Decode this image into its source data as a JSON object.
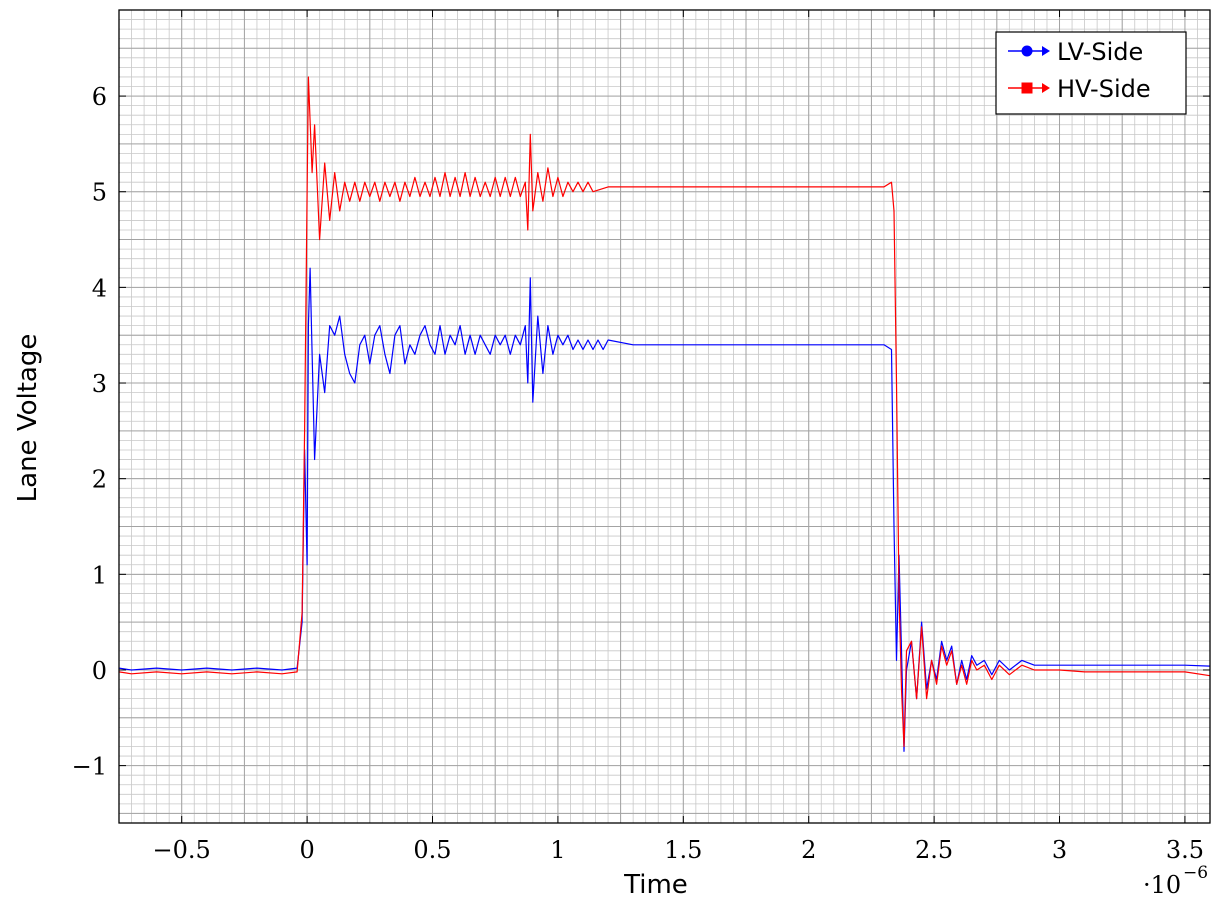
{
  "chart_data": {
    "type": "line",
    "title": "",
    "xlabel": "Time",
    "ylabel": "Lane Voltage",
    "x_scale_label": "·10",
    "x_scale_exponent": "−6",
    "xlim": [
      -0.75,
      3.6
    ],
    "ylim": [
      -1.6,
      6.9
    ],
    "xticks": [
      -0.5,
      0,
      0.5,
      1,
      1.5,
      2,
      2.5,
      3,
      3.5
    ],
    "xtick_labels": [
      "−0.5",
      "0",
      "0.5",
      "1",
      "1.5",
      "2",
      "2.5",
      "3",
      "3.5"
    ],
    "yticks": [
      -1,
      0,
      1,
      2,
      3,
      4,
      5,
      6
    ],
    "ytick_labels": [
      "−1",
      "0",
      "1",
      "2",
      "3",
      "4",
      "5",
      "6"
    ],
    "grid": true,
    "legend_position": "top-right",
    "series": [
      {
        "name": "LV-Side",
        "color": "#0000ff",
        "marker": "circle",
        "points": [
          [
            -0.75,
            0.02
          ],
          [
            -0.7,
            0.0
          ],
          [
            -0.6,
            0.02
          ],
          [
            -0.5,
            0.0
          ],
          [
            -0.4,
            0.02
          ],
          [
            -0.3,
            0.0
          ],
          [
            -0.2,
            0.02
          ],
          [
            -0.1,
            0.0
          ],
          [
            -0.04,
            0.02
          ],
          [
            -0.02,
            0.5
          ],
          [
            -0.01,
            2.3
          ],
          [
            0.0,
            1.1
          ],
          [
            0.005,
            3.6
          ],
          [
            0.012,
            4.2
          ],
          [
            0.03,
            2.2
          ],
          [
            0.05,
            3.3
          ],
          [
            0.07,
            2.9
          ],
          [
            0.09,
            3.6
          ],
          [
            0.11,
            3.5
          ],
          [
            0.13,
            3.7
          ],
          [
            0.15,
            3.3
          ],
          [
            0.17,
            3.1
          ],
          [
            0.19,
            3.0
          ],
          [
            0.21,
            3.4
          ],
          [
            0.23,
            3.5
          ],
          [
            0.25,
            3.2
          ],
          [
            0.27,
            3.5
          ],
          [
            0.29,
            3.6
          ],
          [
            0.31,
            3.3
          ],
          [
            0.33,
            3.1
          ],
          [
            0.35,
            3.5
          ],
          [
            0.37,
            3.6
          ],
          [
            0.39,
            3.2
          ],
          [
            0.41,
            3.4
          ],
          [
            0.43,
            3.3
          ],
          [
            0.45,
            3.5
          ],
          [
            0.47,
            3.6
          ],
          [
            0.49,
            3.4
          ],
          [
            0.51,
            3.3
          ],
          [
            0.53,
            3.6
          ],
          [
            0.55,
            3.3
          ],
          [
            0.57,
            3.5
          ],
          [
            0.59,
            3.4
          ],
          [
            0.61,
            3.6
          ],
          [
            0.63,
            3.3
          ],
          [
            0.65,
            3.5
          ],
          [
            0.67,
            3.3
          ],
          [
            0.69,
            3.5
          ],
          [
            0.71,
            3.4
          ],
          [
            0.73,
            3.3
          ],
          [
            0.75,
            3.5
          ],
          [
            0.77,
            3.4
          ],
          [
            0.79,
            3.5
          ],
          [
            0.81,
            3.3
          ],
          [
            0.83,
            3.5
          ],
          [
            0.85,
            3.4
          ],
          [
            0.87,
            3.6
          ],
          [
            0.88,
            3.0
          ],
          [
            0.89,
            4.1
          ],
          [
            0.9,
            2.8
          ],
          [
            0.92,
            3.7
          ],
          [
            0.94,
            3.1
          ],
          [
            0.96,
            3.6
          ],
          [
            0.98,
            3.3
          ],
          [
            1.0,
            3.5
          ],
          [
            1.02,
            3.4
          ],
          [
            1.04,
            3.5
          ],
          [
            1.06,
            3.35
          ],
          [
            1.08,
            3.45
          ],
          [
            1.1,
            3.35
          ],
          [
            1.12,
            3.45
          ],
          [
            1.14,
            3.35
          ],
          [
            1.16,
            3.45
          ],
          [
            1.18,
            3.35
          ],
          [
            1.2,
            3.45
          ],
          [
            1.3,
            3.4
          ],
          [
            1.4,
            3.4
          ],
          [
            1.5,
            3.4
          ],
          [
            1.6,
            3.4
          ],
          [
            1.7,
            3.4
          ],
          [
            1.8,
            3.4
          ],
          [
            1.9,
            3.4
          ],
          [
            2.0,
            3.4
          ],
          [
            2.1,
            3.4
          ],
          [
            2.2,
            3.4
          ],
          [
            2.3,
            3.4
          ],
          [
            2.33,
            3.35
          ],
          [
            2.34,
            1.5
          ],
          [
            2.35,
            0.1
          ],
          [
            2.36,
            1.2
          ],
          [
            2.37,
            0.2
          ],
          [
            2.38,
            -0.85
          ],
          [
            2.39,
            0.0
          ],
          [
            2.41,
            0.3
          ],
          [
            2.43,
            -0.3
          ],
          [
            2.45,
            0.5
          ],
          [
            2.47,
            -0.2
          ],
          [
            2.49,
            0.1
          ],
          [
            2.51,
            -0.1
          ],
          [
            2.53,
            0.3
          ],
          [
            2.55,
            0.1
          ],
          [
            2.57,
            0.25
          ],
          [
            2.59,
            -0.15
          ],
          [
            2.61,
            0.1
          ],
          [
            2.63,
            -0.1
          ],
          [
            2.65,
            0.15
          ],
          [
            2.67,
            0.05
          ],
          [
            2.7,
            0.1
          ],
          [
            2.73,
            -0.05
          ],
          [
            2.76,
            0.1
          ],
          [
            2.8,
            0.0
          ],
          [
            2.85,
            0.1
          ],
          [
            2.9,
            0.05
          ],
          [
            3.0,
            0.05
          ],
          [
            3.1,
            0.05
          ],
          [
            3.2,
            0.05
          ],
          [
            3.3,
            0.05
          ],
          [
            3.4,
            0.05
          ],
          [
            3.5,
            0.05
          ],
          [
            3.6,
            0.04
          ]
        ]
      },
      {
        "name": "HV-Side",
        "color": "#ff0000",
        "marker": "square",
        "points": [
          [
            -0.75,
            -0.02
          ],
          [
            -0.7,
            -0.04
          ],
          [
            -0.6,
            -0.02
          ],
          [
            -0.5,
            -0.04
          ],
          [
            -0.4,
            -0.02
          ],
          [
            -0.3,
            -0.04
          ],
          [
            -0.2,
            -0.02
          ],
          [
            -0.1,
            -0.04
          ],
          [
            -0.04,
            -0.02
          ],
          [
            -0.02,
            0.6
          ],
          [
            -0.01,
            2.5
          ],
          [
            0.0,
            5.0
          ],
          [
            0.005,
            6.2
          ],
          [
            0.02,
            5.2
          ],
          [
            0.03,
            5.7
          ],
          [
            0.05,
            4.5
          ],
          [
            0.07,
            5.3
          ],
          [
            0.09,
            4.7
          ],
          [
            0.11,
            5.2
          ],
          [
            0.13,
            4.8
          ],
          [
            0.15,
            5.1
          ],
          [
            0.17,
            4.9
          ],
          [
            0.19,
            5.1
          ],
          [
            0.21,
            4.9
          ],
          [
            0.23,
            5.1
          ],
          [
            0.25,
            4.95
          ],
          [
            0.27,
            5.1
          ],
          [
            0.29,
            4.9
          ],
          [
            0.31,
            5.1
          ],
          [
            0.33,
            4.95
          ],
          [
            0.35,
            5.1
          ],
          [
            0.37,
            4.9
          ],
          [
            0.39,
            5.1
          ],
          [
            0.41,
            4.95
          ],
          [
            0.43,
            5.15
          ],
          [
            0.45,
            4.95
          ],
          [
            0.47,
            5.1
          ],
          [
            0.49,
            4.95
          ],
          [
            0.51,
            5.15
          ],
          [
            0.53,
            4.95
          ],
          [
            0.55,
            5.2
          ],
          [
            0.57,
            4.95
          ],
          [
            0.59,
            5.15
          ],
          [
            0.61,
            4.95
          ],
          [
            0.63,
            5.2
          ],
          [
            0.65,
            4.95
          ],
          [
            0.67,
            5.15
          ],
          [
            0.69,
            4.95
          ],
          [
            0.71,
            5.1
          ],
          [
            0.73,
            4.95
          ],
          [
            0.75,
            5.15
          ],
          [
            0.77,
            4.95
          ],
          [
            0.79,
            5.15
          ],
          [
            0.81,
            4.95
          ],
          [
            0.83,
            5.15
          ],
          [
            0.85,
            4.95
          ],
          [
            0.87,
            5.1
          ],
          [
            0.88,
            4.6
          ],
          [
            0.89,
            5.6
          ],
          [
            0.9,
            4.8
          ],
          [
            0.92,
            5.2
          ],
          [
            0.94,
            4.9
          ],
          [
            0.96,
            5.25
          ],
          [
            0.98,
            4.95
          ],
          [
            1.0,
            5.15
          ],
          [
            1.02,
            4.95
          ],
          [
            1.04,
            5.1
          ],
          [
            1.06,
            5.0
          ],
          [
            1.08,
            5.1
          ],
          [
            1.1,
            5.0
          ],
          [
            1.12,
            5.1
          ],
          [
            1.14,
            5.0
          ],
          [
            1.2,
            5.05
          ],
          [
            1.3,
            5.05
          ],
          [
            1.4,
            5.05
          ],
          [
            1.5,
            5.05
          ],
          [
            1.6,
            5.05
          ],
          [
            1.7,
            5.05
          ],
          [
            1.8,
            5.05
          ],
          [
            1.9,
            5.05
          ],
          [
            2.0,
            5.05
          ],
          [
            2.1,
            5.05
          ],
          [
            2.2,
            5.05
          ],
          [
            2.3,
            5.05
          ],
          [
            2.33,
            5.1
          ],
          [
            2.34,
            4.8
          ],
          [
            2.35,
            3.0
          ],
          [
            2.36,
            0.8
          ],
          [
            2.37,
            -0.2
          ],
          [
            2.38,
            -0.8
          ],
          [
            2.39,
            0.2
          ],
          [
            2.41,
            0.3
          ],
          [
            2.43,
            -0.3
          ],
          [
            2.45,
            0.45
          ],
          [
            2.47,
            -0.3
          ],
          [
            2.49,
            0.1
          ],
          [
            2.51,
            -0.15
          ],
          [
            2.53,
            0.25
          ],
          [
            2.55,
            0.05
          ],
          [
            2.57,
            0.2
          ],
          [
            2.59,
            -0.15
          ],
          [
            2.61,
            0.05
          ],
          [
            2.63,
            -0.15
          ],
          [
            2.65,
            0.1
          ],
          [
            2.67,
            0.0
          ],
          [
            2.7,
            0.05
          ],
          [
            2.73,
            -0.1
          ],
          [
            2.76,
            0.05
          ],
          [
            2.8,
            -0.05
          ],
          [
            2.85,
            0.05
          ],
          [
            2.9,
            0.0
          ],
          [
            3.0,
            0.0
          ],
          [
            3.1,
            -0.02
          ],
          [
            3.2,
            -0.02
          ],
          [
            3.3,
            -0.02
          ],
          [
            3.4,
            -0.02
          ],
          [
            3.5,
            -0.02
          ],
          [
            3.6,
            -0.06
          ]
        ]
      }
    ]
  }
}
